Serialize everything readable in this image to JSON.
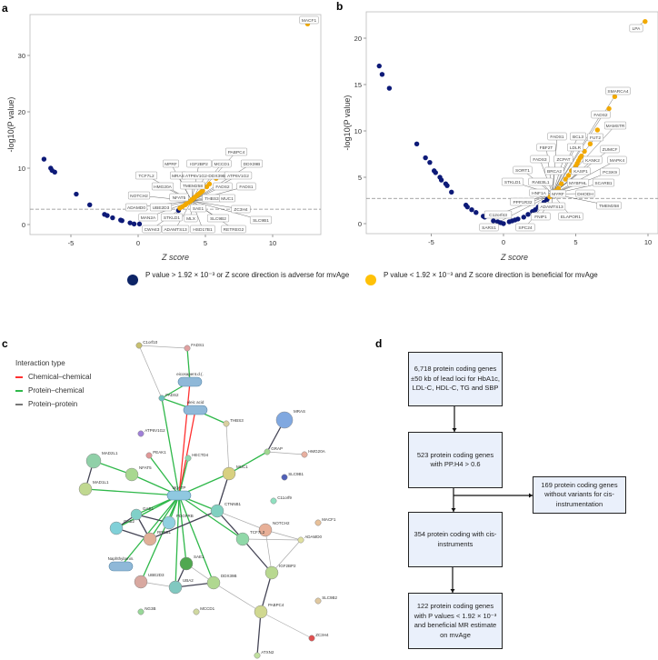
{
  "panels": {
    "a": "a",
    "b": "b",
    "c": "c",
    "d": "d"
  },
  "colors": {
    "blue": "#0d1a78",
    "orange": "#f2a900",
    "legend_blue": "#0d2466",
    "legend_orange": "#ffc107",
    "chemical": "#ff3030",
    "protein_chemical": "#2fb84a",
    "protein_protein": "#777777"
  },
  "chart_data": [
    {
      "type": "scatter",
      "panel": "a",
      "xlabel": "Z score",
      "ylabel": "-log10(P value)",
      "xlim": [
        -8,
        13.5
      ],
      "ylim": [
        -1.8,
        37.3
      ],
      "xticks": [
        "-5",
        "0",
        "5",
        "10"
      ],
      "yticks": [
        "0",
        "10",
        "20",
        "30"
      ],
      "threshold": 2.72,
      "series": [
        {
          "name": "adverse",
          "color": "blue",
          "points": [
            [
              -7,
              11.6
            ],
            [
              -6.5,
              10
            ],
            [
              -6.4,
              9.6
            ],
            [
              -6.2,
              9.3
            ],
            [
              -4.6,
              5.4
            ],
            [
              -3.6,
              3.5
            ],
            [
              -2.5,
              1.8
            ],
            [
              -2.3,
              1.6
            ],
            [
              -1.9,
              1.2
            ],
            [
              -1.3,
              0.8
            ],
            [
              -1.2,
              0.7
            ],
            [
              -0.6,
              0.3
            ],
            [
              -0.3,
              0.1
            ],
            [
              0.1,
              0.1
            ],
            [
              1.9,
              1.2
            ],
            [
              2.0,
              1.4
            ],
            [
              3.0,
              2.5
            ]
          ]
        },
        {
          "name": "beneficial",
          "color": "orange",
          "points": [
            [
              3.1,
              2.9
            ],
            [
              3.3,
              3.2
            ],
            [
              3.5,
              3.5
            ],
            [
              3.6,
              3.7
            ],
            [
              3.8,
              4.0
            ],
            [
              3.9,
              4.2
            ],
            [
              4.0,
              4.4
            ],
            [
              4.1,
              4.6
            ],
            [
              4.2,
              4.8
            ],
            [
              4.3,
              5.0
            ],
            [
              4.4,
              5.2
            ],
            [
              4.5,
              5.4
            ],
            [
              4.6,
              5.6
            ],
            [
              4.7,
              5.8
            ],
            [
              4.8,
              6.0
            ],
            [
              5.1,
              6.7
            ],
            [
              5.3,
              7.2
            ],
            [
              5.8,
              8.2
            ],
            [
              12.6,
              35.6
            ]
          ]
        }
      ],
      "labels": [
        "MACF1",
        "PABPC4",
        "MPRF",
        "IGF2BP2",
        "MCCD1",
        "DDX39B",
        "TCF7L2",
        "MRAS",
        "ATP6V1G2-DDX39B",
        "ATP6V1G2",
        "HMG20A",
        "TMEM258",
        "FADS2",
        "FADS1",
        "NOTCH2",
        "NFAT5",
        "THBS3",
        "MUC1",
        "ADAMD0",
        "UBE2D3",
        "SAE1",
        "ZC3H4",
        "MAN2A",
        "STKLD1",
        "MLX",
        "SLC9B2",
        "SLC9B1",
        "CWH43",
        "ADAMTS13",
        "HSD17B1",
        "RETREG2"
      ]
    },
    {
      "type": "scatter",
      "panel": "b",
      "xlabel": "Z score",
      "ylabel": "-log10(P value)",
      "xlim": [
        -9.5,
        10.7
      ],
      "ylim": [
        -1.1,
        22.8
      ],
      "xticks": [
        "-5",
        "0",
        "5",
        "10"
      ],
      "yticks": [
        "0",
        "5",
        "10",
        "15",
        "20"
      ],
      "threshold": 2.72,
      "series": [
        {
          "name": "adverse",
          "color": "blue",
          "points": [
            [
              -8.6,
              17
            ],
            [
              -8.4,
              16.1
            ],
            [
              -7.9,
              14.6
            ],
            [
              -6,
              8.6
            ],
            [
              -5.4,
              7.1
            ],
            [
              -5.1,
              6.6
            ],
            [
              -4.8,
              5.7
            ],
            [
              -4.7,
              5.5
            ],
            [
              -4.4,
              5
            ],
            [
              -4.3,
              4.7
            ],
            [
              -4,
              4.3
            ],
            [
              -3.9,
              4.1
            ],
            [
              -3.6,
              3.4
            ],
            [
              -2.6,
              2
            ],
            [
              -2.5,
              1.8
            ],
            [
              -2.2,
              1.5
            ],
            [
              -1.9,
              1.2
            ],
            [
              -1.4,
              0.8
            ],
            [
              -1.3,
              0.7
            ],
            [
              -0.7,
              0.3
            ],
            [
              -0.4,
              0.2
            ],
            [
              -0.2,
              0.1
            ],
            [
              0,
              0
            ],
            [
              0.4,
              0.2
            ],
            [
              0.6,
              0.3
            ],
            [
              0.8,
              0.4
            ],
            [
              1,
              0.5
            ],
            [
              1.4,
              0.7
            ],
            [
              1.7,
              1
            ],
            [
              2,
              1.3
            ],
            [
              2.2,
              1.5
            ],
            [
              2.4,
              1.8
            ],
            [
              2.6,
              2
            ],
            [
              2.8,
              2.3
            ],
            [
              3,
              2.6
            ]
          ]
        },
        {
          "name": "beneficial",
          "color": "orange",
          "points": [
            [
              3.2,
              2.9
            ],
            [
              3.4,
              3.2
            ],
            [
              3.6,
              3.5
            ],
            [
              3.8,
              3.8
            ],
            [
              4,
              4.3
            ],
            [
              4.3,
              4.8
            ],
            [
              4.5,
              5.2
            ],
            [
              4.7,
              5.7
            ],
            [
              5,
              6.2
            ],
            [
              5.1,
              6.5
            ],
            [
              5.2,
              6.8
            ],
            [
              5.3,
              7.1
            ],
            [
              5.4,
              7.3
            ],
            [
              5.6,
              7.8
            ],
            [
              6,
              8.6
            ],
            [
              6.5,
              10.1
            ],
            [
              7.3,
              12.4
            ],
            [
              7.7,
              13.7
            ],
            [
              9.8,
              21.8
            ]
          ]
        }
      ],
      "labels": [
        "LPA",
        "SMARCA4",
        "FADS2",
        "MAMSTR",
        "FUT2",
        "FADS1",
        "BCL3",
        "FBF2T",
        "LDLR",
        "ZUMCF",
        "FADS3",
        "ZCPAT",
        "KANK2",
        "MAPK4",
        "BRCA2",
        "KASP1",
        "PCSK9",
        "SORT1",
        "MYBPHL",
        "SCARB1",
        "STKLD1",
        "RAB3IL1",
        "HNF1A",
        "MYRF",
        "DHODH",
        "TMEM258",
        "PPP1R32",
        "ADAMTS13",
        "C12orf43",
        "FNIP1",
        "ELAPOR1",
        "SARS1",
        "SPC24"
      ]
    }
  ],
  "legend": {
    "blue_text": "P value > 1.92 × 10⁻³ or Z score direction is adverse for mvAge",
    "orange_text": "P value < 1.92 × 10⁻³ and Z score direction is beneficial for mvAge"
  },
  "network": {
    "legend_title": "Interaction type",
    "legend_items": [
      "Chemical–chemical",
      "Protein–chemical",
      "Protein–protein"
    ],
    "nodes": [
      {
        "name": "C1orf10",
        "color": "#c8c070"
      },
      {
        "name": "FADS1",
        "color": "#e0a0a0"
      },
      {
        "name": "eicosapent.d.(.",
        "color": "#8fb8d8",
        "chem": true
      },
      {
        "name": "FADS2",
        "color": "#6cc0c0"
      },
      {
        "name": "oleic acid",
        "color": "#8fb8d8",
        "chem": true
      },
      {
        "name": "THBS3",
        "color": "#d8d0a0"
      },
      {
        "name": "MRAS",
        "color": "#80a8e0"
      },
      {
        "name": "ATP6V1G2",
        "color": "#a080d8"
      },
      {
        "name": "GRAP",
        "color": "#a0d890"
      },
      {
        "name": "HMG20A",
        "color": "#e8b0a0"
      },
      {
        "name": "PEAK1",
        "color": "#e09898"
      },
      {
        "name": "HECTD4",
        "color": "#90d8b0"
      },
      {
        "name": "MAD2L1",
        "color": "#90d0a8"
      },
      {
        "name": "NFAT5",
        "color": "#a8d890"
      },
      {
        "name": "MUC1",
        "color": "#d8d080"
      },
      {
        "name": "SLC9B1",
        "color": "#5060b8"
      },
      {
        "name": "MAD1L1",
        "color": "#c0d890"
      },
      {
        "name": "MgATP",
        "color": "#8fc8e0",
        "chem": true
      },
      {
        "name": "C11orf9",
        "color": "#90e0c0"
      },
      {
        "name": "CTNNB1",
        "color": "#80d0c0"
      },
      {
        "name": "GAB1",
        "color": "#80d0c8"
      },
      {
        "name": "PDGFRB",
        "color": "#90d0e0"
      },
      {
        "name": "GAB2",
        "color": "#80d0d8"
      },
      {
        "name": "NOTCH2",
        "color": "#e8b098"
      },
      {
        "name": "MACF1",
        "color": "#e8c098"
      },
      {
        "name": "RREB1",
        "color": "#e0b098"
      },
      {
        "name": "TCF7L2",
        "color": "#90d8a8"
      },
      {
        "name": "ADAMD0",
        "color": "#e0e0a0"
      },
      {
        "name": "Naphthylamin.",
        "color": "#8fb8d8",
        "chem": true
      },
      {
        "name": "SAE1",
        "color": "#50a850"
      },
      {
        "name": "IGF2BP2",
        "color": "#b8d890"
      },
      {
        "name": "UBE2D3",
        "color": "#d8a8a0"
      },
      {
        "name": "UBA2",
        "color": "#80c8c0"
      },
      {
        "name": "DDX39B",
        "color": "#b0d890"
      },
      {
        "name": "NG3B",
        "color": "#98d898"
      },
      {
        "name": "MCCD1",
        "color": "#d0d8a0"
      },
      {
        "name": "PABPC4",
        "color": "#d0d890"
      },
      {
        "name": "SLC9B2",
        "color": "#e0c8a0"
      },
      {
        "name": "ZC3H4",
        "color": "#e05050"
      },
      {
        "name": "ATXN2",
        "color": "#c0e0a0"
      }
    ],
    "edges": [
      [
        "C1orf10",
        "FADS1",
        "pp"
      ],
      [
        "C1orf10",
        "FADS2",
        "pp"
      ],
      [
        "FADS1",
        "eicosapent.d.(.",
        "pc"
      ],
      [
        "eicosapent.d.(.",
        "FADS2",
        "pc"
      ],
      [
        "FADS2",
        "oleic acid",
        "pc"
      ],
      [
        "FADS2",
        "MgATP",
        "pc"
      ],
      [
        "eicosapent.d.(.",
        "MgATP",
        "cc"
      ],
      [
        "oleic acid",
        "MgATP",
        "cc"
      ],
      [
        "oleic acid",
        "THBS3",
        "pc"
      ],
      [
        "THBS3",
        "MUC1",
        "pp"
      ],
      [
        "MRAS",
        "GRAP",
        "ppd"
      ],
      [
        "GRAP",
        "HMG20A",
        "pp"
      ],
      [
        "GRAP",
        "MUC1",
        "pc"
      ],
      [
        "MUC1",
        "MgATP",
        "pc"
      ],
      [
        "MUC1",
        "CTNNB1",
        "ppd"
      ],
      [
        "MAD2L1",
        "NFAT5",
        "pc"
      ],
      [
        "MAD2L1",
        "MAD1L1",
        "ppd"
      ],
      [
        "MAD1L1",
        "MgATP",
        "pc"
      ],
      [
        "NFAT5",
        "MgATP",
        "pc"
      ],
      [
        "PEAK1",
        "MgATP",
        "pc"
      ],
      [
        "HECTD4",
        "MgATP",
        "pc"
      ],
      [
        "MgATP",
        "GAB1",
        "pc"
      ],
      [
        "MgATP",
        "GAB2",
        "pc"
      ],
      [
        "MgATP",
        "PDGFRB",
        "pc"
      ],
      [
        "MgATP",
        "RREB1",
        "pc"
      ],
      [
        "MgATP",
        "SAE1",
        "pc"
      ],
      [
        "MgATP",
        "UBA2",
        "pc"
      ],
      [
        "MgATP",
        "UBE2D3",
        "pc"
      ],
      [
        "MgATP",
        "DDX39B",
        "pc"
      ],
      [
        "MgATP",
        "CTNNB1",
        "pc"
      ],
      [
        "MgATP",
        "TCF7L2",
        "pc"
      ],
      [
        "MgATP",
        "Naphthylamin.",
        "pc"
      ],
      [
        "GAB1",
        "PDGFRB",
        "ppd"
      ],
      [
        "GAB1",
        "GAB2",
        "ppd"
      ],
      [
        "GAB2",
        "RREB1",
        "ppd"
      ],
      [
        "GAB1",
        "RREB1",
        "ppd"
      ],
      [
        "RREB1",
        "CTNNB1",
        "ppd"
      ],
      [
        "CTNNB1",
        "TCF7L2",
        "ppd"
      ],
      [
        "CTNNB1",
        "NOTCH2",
        "pp"
      ],
      [
        "TCF7L2",
        "IGF2BP2",
        "ppd"
      ],
      [
        "TCF7L2",
        "ADAMD0",
        "pp"
      ],
      [
        "NOTCH2",
        "ADAMD0",
        "pp"
      ],
      [
        "NOTCH2",
        "IGF2BP2",
        "pp"
      ],
      [
        "ADAMD0",
        "IGF2BP2",
        "pp"
      ],
      [
        "IGF2BP2",
        "PABPC4",
        "ppd"
      ],
      [
        "PABPC4",
        "DDX39B",
        "pp"
      ],
      [
        "PABPC4",
        "ATXN2",
        "ppd"
      ],
      [
        "PABPC4",
        "ZC3H4",
        "pp"
      ],
      [
        "UBE2D3",
        "UBA2",
        "pp"
      ],
      [
        "UBA2",
        "DDX39B",
        "ppd"
      ],
      [
        "UBA2",
        "SAE1",
        "ppd"
      ],
      [
        "SAE1",
        "DDX39B",
        "pp"
      ]
    ]
  },
  "flowchart": {
    "box1": "6,718 protein coding genes ±50 kb of lead loci for HbA1c, LDL-C, HDL-C, TG and SBP",
    "box2": "523 protein coding genes with PP.H4 > 0.6",
    "side": "169 protein coding genes without variants for cis-instrumentation",
    "box3": "354 protein coding with cis-instruments",
    "box4": "122 protein coding genes with P values < 1.92 × 10⁻³ and beneficial MR estimate on mvAge"
  }
}
